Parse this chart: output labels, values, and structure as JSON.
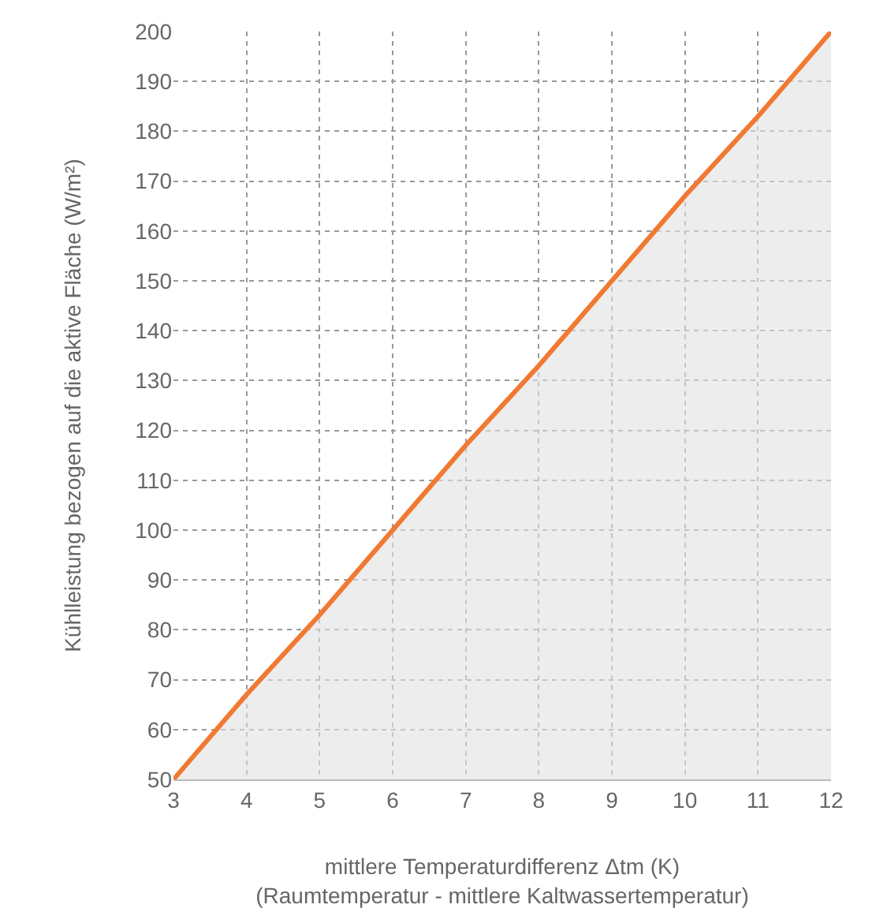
{
  "chart_data": {
    "type": "area",
    "xlabel": "mittlere Temperaturdifferenz Δtm (K)\n(Raumtemperatur - mittlere Kaltwassertemperatur)",
    "ylabel": "Kühlleistung bezogen auf die aktive Fläche (W/m²)",
    "x": [
      3,
      4,
      5,
      6,
      7,
      8,
      9,
      10,
      11,
      12
    ],
    "series": [
      {
        "color": "#f07a32",
        "values": [
          50,
          67,
          83,
          100,
          117,
          133,
          150,
          167,
          183,
          200
        ]
      }
    ],
    "xlim": [
      3,
      12
    ],
    "xticks": [
      3,
      4,
      5,
      6,
      7,
      8,
      9,
      10,
      11,
      12
    ],
    "ylim": [
      50,
      200
    ],
    "yticks": [
      50,
      60,
      70,
      80,
      90,
      100,
      110,
      120,
      130,
      140,
      150,
      160,
      170,
      180,
      190,
      200
    ],
    "grid": true,
    "legend": false,
    "marker": "none",
    "line_style": "solid"
  }
}
